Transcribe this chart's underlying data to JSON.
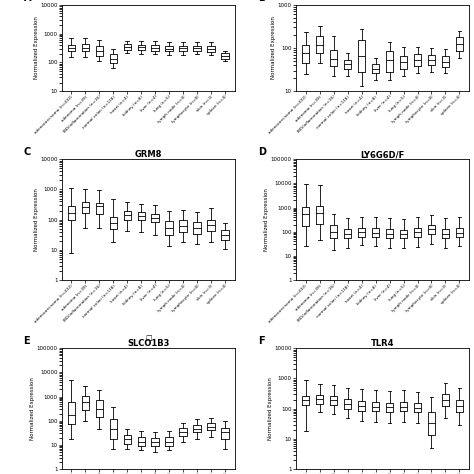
{
  "categories": [
    "adenocarcinoma (n=432)",
    "adenoma (n=39)",
    "IBD/inflammation (n=16)",
    "normal colon (n=118)",
    "heart (n=4)",
    "kidney (n=8)",
    "liver (n=4)",
    "lung (n=5)",
    "lymph node (n=4)",
    "lymphocyte (n=8)",
    "skin (n=3)",
    "spleen (n=4)"
  ],
  "panels": [
    {
      "label": "A",
      "title": "",
      "ylim": [
        10,
        10000
      ],
      "yticks": [
        10,
        100,
        1000,
        10000
      ],
      "partial_top": true,
      "boxes": [
        {
          "med": 310,
          "q1": 240,
          "q3": 410,
          "whislo": 150,
          "whishi": 700
        },
        {
          "med": 320,
          "q1": 240,
          "q3": 430,
          "whislo": 160,
          "whishi": 720
        },
        {
          "med": 250,
          "q1": 170,
          "q3": 370,
          "whislo": 110,
          "whishi": 580
        },
        {
          "med": 130,
          "q1": 95,
          "q3": 190,
          "whislo": 65,
          "whishi": 290
        },
        {
          "med": 340,
          "q1": 270,
          "q3": 430,
          "whislo": 210,
          "whishi": 570
        },
        {
          "med": 330,
          "q1": 260,
          "q3": 415,
          "whislo": 200,
          "whishi": 550
        },
        {
          "med": 320,
          "q1": 255,
          "q3": 400,
          "whislo": 195,
          "whishi": 535
        },
        {
          "med": 300,
          "q1": 240,
          "q3": 375,
          "whislo": 185,
          "whishi": 510
        },
        {
          "med": 305,
          "q1": 245,
          "q3": 380,
          "whislo": 185,
          "whishi": 515
        },
        {
          "med": 310,
          "q1": 248,
          "q3": 385,
          "whislo": 190,
          "whishi": 520
        },
        {
          "med": 295,
          "q1": 238,
          "q3": 372,
          "whislo": 185,
          "whishi": 510
        },
        {
          "med": 165,
          "q1": 135,
          "q3": 205,
          "whislo": 112,
          "whishi": 258
        }
      ]
    },
    {
      "label": "B",
      "title": "",
      "ylim": [
        10,
        1000
      ],
      "yticks": [
        10,
        100,
        1000
      ],
      "partial_top": true,
      "boxes": [
        {
          "med": 75,
          "q1": 45,
          "q3": 120,
          "whislo": 25,
          "whishi": 230
        },
        {
          "med": 120,
          "q1": 75,
          "q3": 190,
          "whislo": 45,
          "whishi": 330
        },
        {
          "med": 55,
          "q1": 38,
          "q3": 90,
          "whislo": 22,
          "whishi": 185
        },
        {
          "med": 42,
          "q1": 33,
          "q3": 52,
          "whislo": 23,
          "whishi": 75
        },
        {
          "med": 65,
          "q1": 28,
          "q3": 150,
          "whislo": 13,
          "whishi": 280
        },
        {
          "med": 33,
          "q1": 26,
          "q3": 42,
          "whislo": 18,
          "whishi": 60
        },
        {
          "med": 52,
          "q1": 28,
          "q3": 85,
          "whislo": 18,
          "whishi": 140
        },
        {
          "med": 48,
          "q1": 33,
          "q3": 66,
          "whislo": 23,
          "whishi": 105
        },
        {
          "med": 52,
          "q1": 38,
          "q3": 72,
          "whislo": 26,
          "whishi": 105
        },
        {
          "med": 52,
          "q1": 40,
          "q3": 69,
          "whislo": 28,
          "whishi": 100
        },
        {
          "med": 48,
          "q1": 36,
          "q3": 65,
          "whislo": 26,
          "whishi": 96
        },
        {
          "med": 125,
          "q1": 85,
          "q3": 175,
          "whislo": 58,
          "whishi": 250
        }
      ]
    },
    {
      "label": "C",
      "title": "GRM8",
      "ylim": [
        1,
        10000
      ],
      "yticks": [
        1,
        10,
        100,
        1000,
        10000
      ],
      "partial_top": false,
      "boxes": [
        {
          "med": 170,
          "q1": 100,
          "q3": 280,
          "whislo": 8,
          "whishi": 1100
        },
        {
          "med": 260,
          "q1": 165,
          "q3": 390,
          "whislo": 55,
          "whishi": 1000
        },
        {
          "med": 280,
          "q1": 160,
          "q3": 370,
          "whislo": 55,
          "whishi": 980
        },
        {
          "med": 75,
          "q1": 48,
          "q3": 120,
          "whislo": 18,
          "whishi": 480
        },
        {
          "med": 140,
          "q1": 100,
          "q3": 195,
          "whislo": 42,
          "whishi": 380
        },
        {
          "med": 130,
          "q1": 95,
          "q3": 175,
          "whislo": 38,
          "whishi": 340
        },
        {
          "med": 115,
          "q1": 82,
          "q3": 158,
          "whislo": 32,
          "whishi": 300
        },
        {
          "med": 55,
          "q1": 32,
          "q3": 88,
          "whislo": 14,
          "whishi": 195
        },
        {
          "med": 62,
          "q1": 38,
          "q3": 96,
          "whislo": 18,
          "whishi": 210
        },
        {
          "med": 55,
          "q1": 33,
          "q3": 82,
          "whislo": 16,
          "whishi": 185
        },
        {
          "med": 65,
          "q1": 43,
          "q3": 98,
          "whislo": 18,
          "whishi": 235
        },
        {
          "med": 32,
          "q1": 22,
          "q3": 46,
          "whislo": 11,
          "whishi": 78
        }
      ]
    },
    {
      "label": "D",
      "title": "LY6G6D/F",
      "ylim": [
        1,
        100000
      ],
      "yticks": [
        1,
        10,
        100,
        1000,
        10000,
        100000
      ],
      "partial_top": false,
      "boxes": [
        {
          "med": 520,
          "q1": 180,
          "q3": 1100,
          "whislo": 25,
          "whishi": 9000
        },
        {
          "med": 620,
          "q1": 220,
          "q3": 1200,
          "whislo": 45,
          "whishi": 8500
        },
        {
          "med": 95,
          "q1": 55,
          "q3": 185,
          "whislo": 18,
          "whishi": 560
        },
        {
          "med": 85,
          "q1": 55,
          "q3": 130,
          "whislo": 22,
          "whishi": 380
        },
        {
          "med": 95,
          "q1": 60,
          "q3": 148,
          "whislo": 28,
          "whishi": 420
        },
        {
          "med": 90,
          "q1": 60,
          "q3": 138,
          "whislo": 25,
          "whishi": 400
        },
        {
          "med": 85,
          "q1": 55,
          "q3": 132,
          "whislo": 22,
          "whishi": 375
        },
        {
          "med": 80,
          "q1": 55,
          "q3": 124,
          "whislo": 21,
          "whishi": 350
        },
        {
          "med": 95,
          "q1": 60,
          "q3": 138,
          "whislo": 24,
          "whishi": 395
        },
        {
          "med": 125,
          "q1": 80,
          "q3": 195,
          "whislo": 32,
          "whishi": 475
        },
        {
          "med": 85,
          "q1": 56,
          "q3": 132,
          "whislo": 22,
          "whishi": 375
        },
        {
          "med": 90,
          "q1": 60,
          "q3": 138,
          "whislo": 25,
          "whishi": 400
        }
      ]
    },
    {
      "label": "E",
      "title": "SLCO1B3",
      "title_note": true,
      "ylim": [
        1,
        100000
      ],
      "yticks": [
        1,
        10,
        100,
        1000,
        10000,
        100000
      ],
      "partial_top": false,
      "boxes": [
        {
          "med": 180,
          "q1": 75,
          "q3": 620,
          "whislo": 18,
          "whishi": 4800
        },
        {
          "med": 580,
          "q1": 280,
          "q3": 1100,
          "whislo": 95,
          "whishi": 2800
        },
        {
          "med": 320,
          "q1": 140,
          "q3": 750,
          "whislo": 45,
          "whishi": 1900
        },
        {
          "med": 48,
          "q1": 18,
          "q3": 115,
          "whislo": 7,
          "whishi": 380
        },
        {
          "med": 17,
          "q1": 11,
          "q3": 26,
          "whislo": 7,
          "whishi": 47
        },
        {
          "med": 14,
          "q1": 9,
          "q3": 21,
          "whislo": 6,
          "whishi": 38
        },
        {
          "med": 13,
          "q1": 9,
          "q3": 19,
          "whislo": 5,
          "whishi": 35
        },
        {
          "med": 14,
          "q1": 9,
          "q3": 21,
          "whislo": 6,
          "whishi": 38
        },
        {
          "med": 33,
          "q1": 23,
          "q3": 50,
          "whislo": 14,
          "whishi": 85
        },
        {
          "med": 48,
          "q1": 33,
          "q3": 68,
          "whislo": 18,
          "whishi": 115
        },
        {
          "med": 58,
          "q1": 40,
          "q3": 82,
          "whislo": 21,
          "whishi": 132
        },
        {
          "med": 33,
          "q1": 18,
          "q3": 52,
          "whislo": 7,
          "whishi": 95
        }
      ]
    },
    {
      "label": "F",
      "title": "TLR4",
      "ylim": [
        1,
        10000
      ],
      "yticks": [
        1,
        10,
        100,
        1000,
        10000
      ],
      "partial_top": false,
      "boxes": [
        {
          "med": 195,
          "q1": 135,
          "q3": 272,
          "whislo": 18,
          "whishi": 870
        },
        {
          "med": 215,
          "q1": 145,
          "q3": 292,
          "whislo": 75,
          "whishi": 680
        },
        {
          "med": 195,
          "q1": 135,
          "q3": 262,
          "whislo": 65,
          "whishi": 630
        },
        {
          "med": 145,
          "q1": 97,
          "q3": 214,
          "whislo": 48,
          "whishi": 485
        },
        {
          "med": 125,
          "q1": 87,
          "q3": 175,
          "whislo": 38,
          "whishi": 438
        },
        {
          "med": 116,
          "q1": 82,
          "q3": 164,
          "whislo": 36,
          "whishi": 408
        },
        {
          "med": 110,
          "q1": 79,
          "q3": 156,
          "whislo": 34,
          "whishi": 388
        },
        {
          "med": 116,
          "q1": 82,
          "q3": 164,
          "whislo": 36,
          "whishi": 408
        },
        {
          "med": 105,
          "q1": 75,
          "q3": 150,
          "whislo": 33,
          "whishi": 368
        },
        {
          "med": 33,
          "q1": 14,
          "q3": 77,
          "whislo": 5,
          "whishi": 242
        },
        {
          "med": 195,
          "q1": 125,
          "q3": 302,
          "whislo": 48,
          "whishi": 682
        },
        {
          "med": 125,
          "q1": 77,
          "q3": 194,
          "whislo": 28,
          "whishi": 485
        }
      ]
    }
  ],
  "ylabel": "Normalized Expression",
  "tick_labels": [
    "adenocarcinoma (n=432)",
    "adenoma (n=39)",
    "IBD/inflammation (n=16)",
    "normal colon (n=118)",
    "heart (n=4)",
    "kidney (n=8)",
    "liver (n=4)",
    "lung (n=5)",
    "lymph node (n=4)",
    "lymphocyte (n=8)",
    "skin (n=3)",
    "spleen (n=4)"
  ]
}
